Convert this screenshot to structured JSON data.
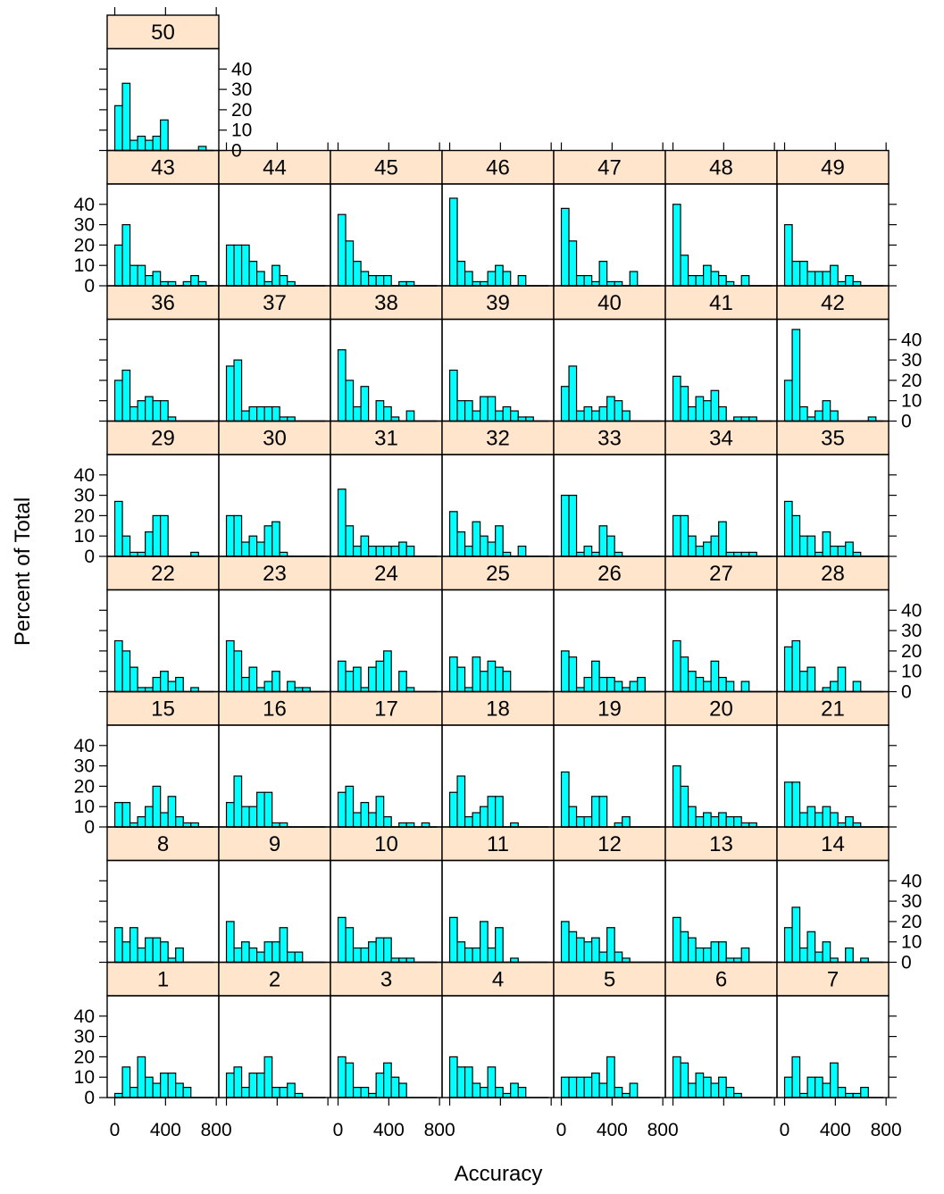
{
  "chart_data": {
    "type": "bar",
    "chart_kind": "lattice-histogram",
    "xlabel": "Accuracy",
    "ylabel": "Percent of Total",
    "xlim": [
      -60,
      820
    ],
    "ylim": [
      0,
      50
    ],
    "x_ticks": [
      0,
      400,
      800
    ],
    "y_ticks": [
      0,
      10,
      20,
      30,
      40
    ],
    "bin_width": 60,
    "bin_starts": [
      0,
      60,
      120,
      180,
      240,
      300,
      360,
      420,
      480,
      540,
      600,
      660,
      720
    ],
    "colors": {
      "bar_fill": "#00ffff",
      "bar_stroke": "#000000",
      "strip_fill": "#ffe5cc",
      "frame": "#000000"
    },
    "panels": [
      {
        "label": "1",
        "values": [
          2,
          15,
          5,
          20,
          10,
          7,
          12,
          12,
          7,
          5,
          0,
          0,
          0
        ]
      },
      {
        "label": "2",
        "values": [
          12,
          15,
          5,
          12,
          12,
          20,
          5,
          5,
          7,
          2,
          0,
          0,
          0
        ]
      },
      {
        "label": "3",
        "values": [
          20,
          17,
          5,
          5,
          2,
          12,
          17,
          10,
          7,
          0,
          0,
          0,
          0
        ]
      },
      {
        "label": "4",
        "values": [
          20,
          15,
          15,
          7,
          5,
          15,
          5,
          2,
          7,
          5,
          0,
          0,
          0
        ]
      },
      {
        "label": "5",
        "values": [
          10,
          10,
          10,
          10,
          12,
          7,
          20,
          5,
          2,
          7,
          0,
          0,
          0
        ]
      },
      {
        "label": "6",
        "values": [
          20,
          17,
          7,
          12,
          10,
          7,
          10,
          5,
          2,
          0,
          0,
          0,
          0
        ]
      },
      {
        "label": "7",
        "values": [
          10,
          20,
          2,
          10,
          10,
          7,
          17,
          5,
          2,
          2,
          5,
          0,
          0
        ]
      },
      {
        "label": "8",
        "values": [
          17,
          10,
          17,
          7,
          12,
          12,
          10,
          2,
          7,
          0,
          0,
          0,
          0
        ]
      },
      {
        "label": "9",
        "values": [
          20,
          7,
          10,
          7,
          5,
          10,
          10,
          17,
          5,
          5,
          0,
          0,
          0
        ]
      },
      {
        "label": "10",
        "values": [
          22,
          17,
          7,
          7,
          10,
          12,
          12,
          2,
          2,
          2,
          0,
          0,
          0
        ]
      },
      {
        "label": "11",
        "values": [
          22,
          10,
          7,
          7,
          20,
          7,
          17,
          0,
          2,
          0,
          0,
          0,
          0
        ]
      },
      {
        "label": "12",
        "values": [
          20,
          15,
          12,
          10,
          12,
          5,
          17,
          5,
          2,
          0,
          0,
          0,
          0
        ]
      },
      {
        "label": "13",
        "values": [
          22,
          15,
          12,
          7,
          7,
          10,
          10,
          2,
          2,
          7,
          0,
          0,
          0
        ]
      },
      {
        "label": "14",
        "values": [
          17,
          27,
          7,
          15,
          5,
          10,
          2,
          0,
          7,
          0,
          2,
          0,
          0
        ]
      },
      {
        "label": "15",
        "values": [
          12,
          12,
          2,
          5,
          10,
          20,
          7,
          15,
          5,
          2,
          2,
          0,
          0
        ]
      },
      {
        "label": "16",
        "values": [
          12,
          25,
          10,
          10,
          17,
          17,
          2,
          2,
          0,
          0,
          0,
          0,
          0
        ]
      },
      {
        "label": "17",
        "values": [
          17,
          20,
          7,
          12,
          7,
          15,
          5,
          0,
          2,
          2,
          0,
          2,
          0
        ]
      },
      {
        "label": "18",
        "values": [
          17,
          25,
          5,
          7,
          10,
          15,
          15,
          0,
          2,
          0,
          0,
          0,
          0
        ]
      },
      {
        "label": "19",
        "values": [
          27,
          10,
          5,
          5,
          15,
          15,
          0,
          2,
          5,
          0,
          0,
          0,
          0
        ]
      },
      {
        "label": "20",
        "values": [
          30,
          20,
          10,
          5,
          7,
          5,
          7,
          5,
          5,
          2,
          2,
          0,
          0
        ]
      },
      {
        "label": "21",
        "values": [
          22,
          22,
          7,
          10,
          7,
          10,
          7,
          2,
          5,
          2,
          0,
          0,
          0
        ]
      },
      {
        "label": "22",
        "values": [
          25,
          20,
          12,
          2,
          2,
          7,
          10,
          5,
          7,
          0,
          2,
          0,
          0
        ]
      },
      {
        "label": "23",
        "values": [
          25,
          20,
          7,
          12,
          2,
          5,
          10,
          0,
          5,
          2,
          2,
          0,
          0
        ]
      },
      {
        "label": "24",
        "values": [
          15,
          10,
          12,
          2,
          12,
          15,
          20,
          0,
          10,
          2,
          0,
          0,
          0
        ]
      },
      {
        "label": "25",
        "values": [
          17,
          12,
          2,
          17,
          10,
          15,
          12,
          10,
          0,
          0,
          0,
          0,
          0
        ]
      },
      {
        "label": "26",
        "values": [
          20,
          17,
          2,
          7,
          15,
          7,
          7,
          5,
          2,
          5,
          7,
          0,
          0
        ]
      },
      {
        "label": "27",
        "values": [
          25,
          17,
          10,
          7,
          5,
          15,
          7,
          5,
          0,
          5,
          0,
          0,
          0
        ]
      },
      {
        "label": "28",
        "values": [
          22,
          25,
          10,
          12,
          0,
          2,
          5,
          12,
          0,
          5,
          0,
          0,
          0
        ]
      },
      {
        "label": "29",
        "values": [
          27,
          10,
          2,
          2,
          12,
          20,
          20,
          0,
          0,
          0,
          2,
          0,
          0
        ]
      },
      {
        "label": "30",
        "values": [
          20,
          20,
          7,
          10,
          7,
          15,
          17,
          2,
          0,
          0,
          0,
          0,
          0
        ]
      },
      {
        "label": "31",
        "values": [
          33,
          15,
          5,
          10,
          5,
          5,
          5,
          5,
          7,
          5,
          0,
          0,
          0
        ]
      },
      {
        "label": "32",
        "values": [
          22,
          12,
          5,
          17,
          10,
          7,
          15,
          2,
          0,
          5,
          0,
          0,
          0
        ]
      },
      {
        "label": "33",
        "values": [
          30,
          30,
          2,
          5,
          2,
          15,
          10,
          2,
          0,
          0,
          0,
          0,
          0
        ]
      },
      {
        "label": "34",
        "values": [
          20,
          20,
          10,
          5,
          7,
          10,
          17,
          2,
          2,
          2,
          2,
          0,
          0
        ]
      },
      {
        "label": "35",
        "values": [
          27,
          20,
          10,
          10,
          2,
          12,
          5,
          5,
          7,
          2,
          0,
          0,
          0
        ]
      },
      {
        "label": "36",
        "values": [
          20,
          25,
          7,
          10,
          12,
          10,
          10,
          2,
          0,
          0,
          0,
          0,
          0
        ]
      },
      {
        "label": "37",
        "values": [
          27,
          30,
          5,
          7,
          7,
          7,
          7,
          2,
          2,
          0,
          0,
          0,
          0
        ]
      },
      {
        "label": "38",
        "values": [
          35,
          20,
          7,
          17,
          0,
          10,
          7,
          2,
          0,
          5,
          0,
          0,
          0
        ]
      },
      {
        "label": "39",
        "values": [
          25,
          10,
          10,
          5,
          12,
          12,
          5,
          7,
          5,
          2,
          2,
          0,
          0
        ]
      },
      {
        "label": "40",
        "values": [
          17,
          27,
          5,
          7,
          5,
          7,
          12,
          10,
          5,
          0,
          0,
          0,
          0
        ]
      },
      {
        "label": "41",
        "values": [
          22,
          17,
          7,
          12,
          10,
          15,
          7,
          0,
          2,
          2,
          2,
          0,
          0
        ]
      },
      {
        "label": "42",
        "values": [
          20,
          45,
          7,
          2,
          5,
          10,
          5,
          0,
          0,
          0,
          0,
          2,
          0
        ]
      },
      {
        "label": "43",
        "values": [
          20,
          30,
          10,
          10,
          5,
          7,
          2,
          2,
          0,
          2,
          5,
          2,
          0
        ]
      },
      {
        "label": "44",
        "values": [
          20,
          20,
          20,
          12,
          7,
          2,
          10,
          5,
          2,
          0,
          0,
          0,
          0
        ]
      },
      {
        "label": "45",
        "values": [
          35,
          22,
          12,
          7,
          5,
          5,
          5,
          0,
          2,
          2,
          0,
          0,
          0
        ]
      },
      {
        "label": "46",
        "values": [
          43,
          12,
          7,
          2,
          2,
          7,
          10,
          7,
          0,
          5,
          0,
          0,
          0
        ]
      },
      {
        "label": "47",
        "values": [
          38,
          22,
          5,
          5,
          2,
          12,
          2,
          2,
          0,
          7,
          0,
          0,
          0
        ]
      },
      {
        "label": "48",
        "values": [
          40,
          15,
          5,
          5,
          10,
          7,
          5,
          2,
          0,
          5,
          0,
          0,
          0
        ]
      },
      {
        "label": "49",
        "values": [
          30,
          12,
          12,
          7,
          7,
          7,
          10,
          2,
          5,
          2,
          0,
          0,
          0
        ]
      },
      {
        "label": "50",
        "values": [
          22,
          33,
          5,
          7,
          5,
          7,
          15,
          0,
          0,
          0,
          0,
          2,
          0
        ]
      }
    ]
  }
}
